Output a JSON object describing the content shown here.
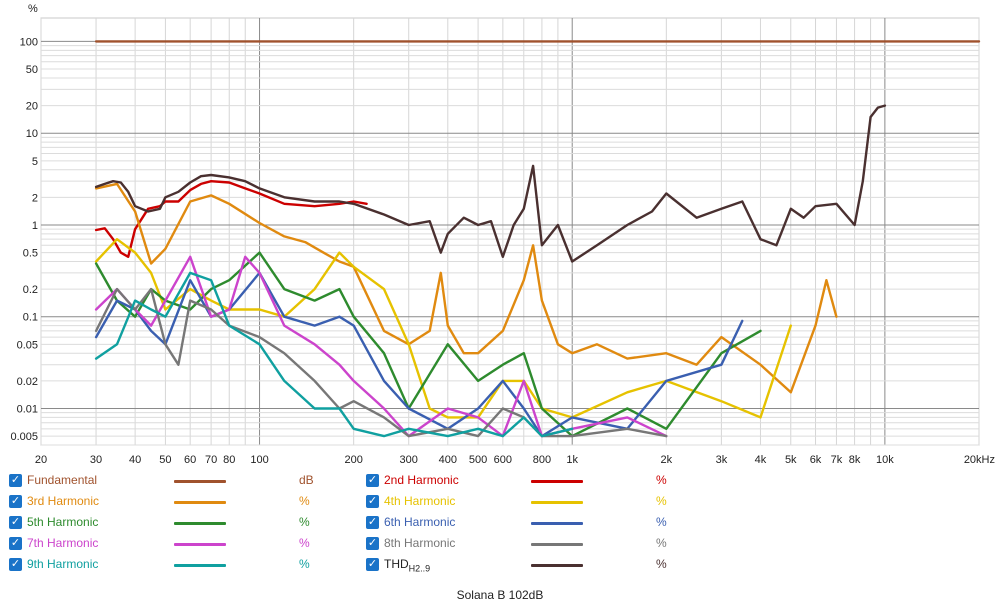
{
  "chart_data": {
    "type": "line",
    "title": "Solana B 102dB",
    "y_unit": "%",
    "x_unit_suffix": "kHz",
    "x_scale": "log",
    "y_scale": "log",
    "xlim": [
      20,
      20000
    ],
    "ylim": [
      0.004,
      180
    ],
    "grid": true,
    "legend_placement": "bottom",
    "x_ticks": [
      {
        "v": 20,
        "l": "20"
      },
      {
        "v": 30,
        "l": "30"
      },
      {
        "v": 40,
        "l": "40"
      },
      {
        "v": 50,
        "l": "50"
      },
      {
        "v": 60,
        "l": "60"
      },
      {
        "v": 70,
        "l": "70"
      },
      {
        "v": 80,
        "l": "80"
      },
      {
        "v": 100,
        "l": "100"
      },
      {
        "v": 200,
        "l": "200"
      },
      {
        "v": 300,
        "l": "300"
      },
      {
        "v": 400,
        "l": "400"
      },
      {
        "v": 500,
        "l": "500"
      },
      {
        "v": 600,
        "l": "600"
      },
      {
        "v": 800,
        "l": "800"
      },
      {
        "v": 1000,
        "l": "1k"
      },
      {
        "v": 2000,
        "l": "2k"
      },
      {
        "v": 3000,
        "l": "3k"
      },
      {
        "v": 4000,
        "l": "4k"
      },
      {
        "v": 5000,
        "l": "5k"
      },
      {
        "v": 6000,
        "l": "6k"
      },
      {
        "v": 7000,
        "l": "7k"
      },
      {
        "v": 8000,
        "l": "8k"
      },
      {
        "v": 10000,
        "l": "10k"
      },
      {
        "v": 20000,
        "l": "20kHz"
      }
    ],
    "y_ticks": [
      {
        "v": 100,
        "l": "100"
      },
      {
        "v": 50,
        "l": "50"
      },
      {
        "v": 20,
        "l": "20"
      },
      {
        "v": 10,
        "l": "10"
      },
      {
        "v": 5,
        "l": "5"
      },
      {
        "v": 2,
        "l": "2"
      },
      {
        "v": 1,
        "l": "1"
      },
      {
        "v": 0.5,
        "l": "0.5"
      },
      {
        "v": 0.2,
        "l": "0.2"
      },
      {
        "v": 0.1,
        "l": "0.1"
      },
      {
        "v": 0.05,
        "l": "0.05"
      },
      {
        "v": 0.02,
        "l": "0.02"
      },
      {
        "v": 0.01,
        "l": "0.01"
      },
      {
        "v": 0.005,
        "l": "0.005"
      }
    ],
    "series": [
      {
        "name": "Fundamental",
        "unit": "dB",
        "color": "#a0522d",
        "x": [
          30,
          10000,
          20000
        ],
        "y": [
          100,
          100,
          100
        ]
      },
      {
        "name": "2nd Harmonic",
        "unit": "%",
        "color": "#cc0000",
        "x": [
          30,
          32,
          34,
          36,
          38,
          40,
          44,
          48,
          50,
          55,
          60,
          65,
          70,
          80,
          90,
          100,
          120,
          150,
          180,
          200,
          220
        ],
        "y": [
          0.88,
          0.92,
          0.7,
          0.5,
          0.45,
          0.9,
          1.5,
          1.6,
          1.8,
          1.8,
          2.4,
          2.8,
          3.0,
          2.9,
          2.5,
          2.2,
          1.7,
          1.6,
          1.7,
          1.8,
          1.7
        ]
      },
      {
        "name": "3rd Harmonic",
        "unit": "%",
        "color": "#e08a10",
        "x": [
          30,
          35,
          40,
          45,
          50,
          60,
          70,
          80,
          100,
          120,
          140,
          160,
          180,
          200,
          250,
          300,
          350,
          380,
          400,
          450,
          500,
          600,
          700,
          750,
          800,
          900,
          1000,
          1200,
          1500,
          2000,
          2500,
          3000,
          4000,
          5000,
          6000,
          6500,
          7000
        ],
        "y": [
          2.5,
          2.8,
          1.4,
          0.38,
          0.55,
          1.8,
          2.1,
          1.7,
          1.05,
          0.75,
          0.65,
          0.5,
          0.4,
          0.35,
          0.07,
          0.05,
          0.07,
          0.3,
          0.08,
          0.04,
          0.04,
          0.07,
          0.25,
          0.6,
          0.15,
          0.05,
          0.04,
          0.05,
          0.035,
          0.04,
          0.03,
          0.06,
          0.03,
          0.015,
          0.08,
          0.25,
          0.1
        ]
      },
      {
        "name": "4th Harmonic",
        "unit": "%",
        "color": "#e6c200",
        "x": [
          30,
          35,
          40,
          45,
          50,
          60,
          70,
          80,
          100,
          120,
          150,
          180,
          200,
          250,
          300,
          350,
          400,
          500,
          600,
          700,
          800,
          1000,
          1500,
          2000,
          3000,
          4000,
          5000
        ],
        "y": [
          0.4,
          0.7,
          0.5,
          0.3,
          0.12,
          0.2,
          0.15,
          0.12,
          0.12,
          0.1,
          0.2,
          0.5,
          0.35,
          0.2,
          0.05,
          0.01,
          0.008,
          0.008,
          0.02,
          0.02,
          0.01,
          0.008,
          0.015,
          0.02,
          0.012,
          0.008,
          0.08
        ]
      },
      {
        "name": "5th Harmonic",
        "unit": "%",
        "color": "#2e8b2e",
        "x": [
          30,
          35,
          40,
          45,
          50,
          60,
          70,
          80,
          100,
          120,
          150,
          180,
          200,
          250,
          300,
          400,
          500,
          600,
          700,
          800,
          1000,
          1500,
          2000,
          3000,
          4000
        ],
        "y": [
          0.38,
          0.15,
          0.1,
          0.2,
          0.15,
          0.12,
          0.2,
          0.25,
          0.5,
          0.2,
          0.15,
          0.2,
          0.1,
          0.04,
          0.01,
          0.05,
          0.02,
          0.03,
          0.04,
          0.01,
          0.005,
          0.01,
          0.006,
          0.04,
          0.07
        ]
      },
      {
        "name": "6th Harmonic",
        "unit": "%",
        "color": "#3a5fb0",
        "x": [
          30,
          35,
          40,
          45,
          50,
          60,
          70,
          80,
          100,
          120,
          150,
          180,
          200,
          250,
          300,
          400,
          500,
          600,
          700,
          800,
          1000,
          1500,
          2000,
          3000,
          3500
        ],
        "y": [
          0.06,
          0.15,
          0.12,
          0.07,
          0.05,
          0.25,
          0.1,
          0.12,
          0.3,
          0.1,
          0.08,
          0.1,
          0.08,
          0.02,
          0.01,
          0.006,
          0.01,
          0.02,
          0.01,
          0.005,
          0.008,
          0.006,
          0.02,
          0.03,
          0.09
        ]
      },
      {
        "name": "7th Harmonic",
        "unit": "%",
        "color": "#cc44cc",
        "x": [
          30,
          35,
          40,
          45,
          50,
          60,
          70,
          80,
          90,
          100,
          120,
          150,
          180,
          200,
          250,
          300,
          400,
          500,
          600,
          700,
          800,
          1000,
          1500,
          2000
        ],
        "y": [
          0.12,
          0.2,
          0.12,
          0.08,
          0.15,
          0.45,
          0.1,
          0.12,
          0.45,
          0.3,
          0.08,
          0.05,
          0.03,
          0.02,
          0.01,
          0.005,
          0.01,
          0.008,
          0.005,
          0.02,
          0.005,
          0.006,
          0.008,
          0.005
        ]
      },
      {
        "name": "8th Harmonic",
        "unit": "%",
        "color": "#777777",
        "x": [
          30,
          35,
          40,
          45,
          50,
          55,
          60,
          70,
          80,
          100,
          120,
          150,
          180,
          200,
          250,
          300,
          400,
          500,
          600,
          700,
          800,
          1000,
          1500,
          2000
        ],
        "y": [
          0.07,
          0.2,
          0.12,
          0.2,
          0.05,
          0.03,
          0.15,
          0.12,
          0.08,
          0.06,
          0.04,
          0.02,
          0.01,
          0.012,
          0.008,
          0.005,
          0.006,
          0.005,
          0.01,
          0.008,
          0.005,
          0.005,
          0.006,
          0.005
        ]
      },
      {
        "name": "9th Harmonic",
        "unit": "%",
        "color": "#10a0a0",
        "x": [
          30,
          35,
          40,
          45,
          50,
          60,
          70,
          80,
          100,
          120,
          150,
          180,
          200,
          250,
          300,
          400,
          500,
          600,
          700,
          800,
          1000
        ],
        "y": [
          0.035,
          0.05,
          0.15,
          0.12,
          0.1,
          0.3,
          0.25,
          0.08,
          0.05,
          0.02,
          0.01,
          0.01,
          0.006,
          0.005,
          0.006,
          0.005,
          0.006,
          0.005,
          0.008,
          0.005,
          0.006
        ]
      },
      {
        "name": "THD",
        "name_sub": "H2..9",
        "unit": "%",
        "color": "#4a3030",
        "x": [
          30,
          32,
          34,
          36,
          38,
          40,
          44,
          48,
          50,
          55,
          60,
          65,
          70,
          80,
          90,
          100,
          120,
          150,
          180,
          200,
          250,
          300,
          350,
          380,
          400,
          450,
          500,
          550,
          600,
          650,
          700,
          750,
          800,
          900,
          1000,
          1200,
          1500,
          1800,
          2000,
          2500,
          3000,
          3500,
          4000,
          4500,
          5000,
          5500,
          6000,
          7000,
          8000,
          8500,
          9000,
          9500,
          10000
        ],
        "y": [
          2.6,
          2.8,
          3.0,
          2.9,
          2.3,
          1.6,
          1.4,
          1.5,
          2.0,
          2.3,
          2.9,
          3.4,
          3.5,
          3.3,
          3.0,
          2.5,
          2.0,
          1.8,
          1.8,
          1.7,
          1.3,
          1.0,
          1.1,
          0.5,
          0.8,
          1.2,
          1.0,
          1.1,
          0.45,
          1.0,
          1.5,
          4.4,
          0.6,
          1.0,
          0.4,
          0.6,
          1.0,
          1.4,
          2.2,
          1.2,
          1.5,
          1.8,
          0.7,
          0.6,
          1.5,
          1.2,
          1.6,
          1.7,
          1.0,
          3.0,
          15,
          19,
          20
        ]
      }
    ]
  }
}
